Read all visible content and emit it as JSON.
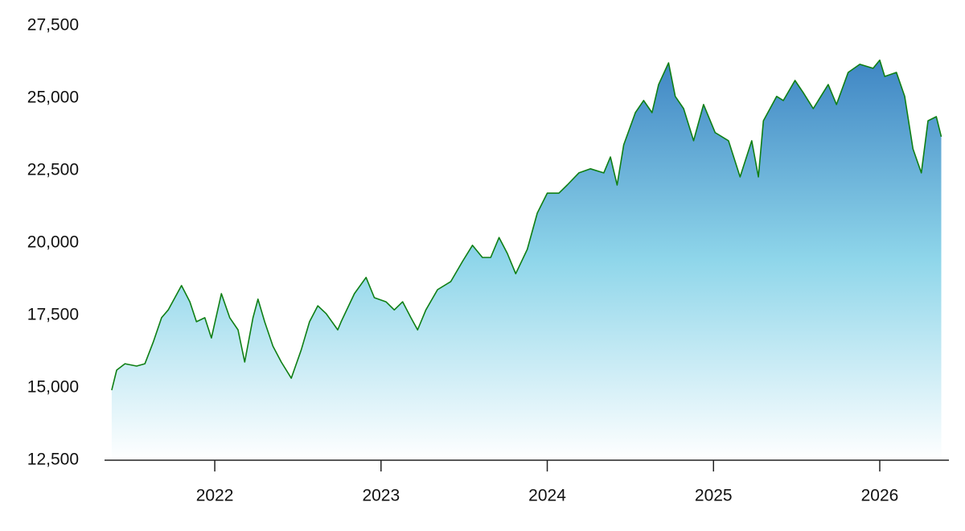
{
  "chart_data": {
    "type": "area",
    "x": [
      2021.38,
      2021.41,
      2021.46,
      2021.53,
      2021.58,
      2021.63,
      2021.68,
      2021.72,
      2021.8,
      2021.85,
      2021.89,
      2021.94,
      2021.98,
      2022.04,
      2022.09,
      2022.14,
      2022.18,
      2022.23,
      2022.26,
      2022.3,
      2022.35,
      2022.4,
      2022.46,
      2022.52,
      2022.57,
      2022.62,
      2022.67,
      2022.74,
      2022.76,
      2022.84,
      2022.91,
      2022.96,
      2023.03,
      2023.08,
      2023.13,
      2023.18,
      2023.22,
      2023.27,
      2023.34,
      2023.42,
      2023.49,
      2023.55,
      2023.61,
      2023.66,
      2023.71,
      2023.76,
      2023.81,
      2023.88,
      2023.94,
      2024.0,
      2024.07,
      2024.12,
      2024.19,
      2024.26,
      2024.34,
      2024.38,
      2024.42,
      2024.46,
      2024.53,
      2024.58,
      2024.63,
      2024.67,
      2024.73,
      2024.77,
      2024.82,
      2024.88,
      2024.94,
      2025.01,
      2025.09,
      2025.16,
      2025.23,
      2025.27,
      2025.3,
      2025.38,
      2025.42,
      2025.49,
      2025.54,
      2025.6,
      2025.69,
      2025.74,
      2025.81,
      2025.88,
      2025.96,
      2026.0,
      2026.03,
      2026.1,
      2026.15,
      2026.2,
      2026.25,
      2026.29,
      2026.34,
      2026.37
    ],
    "series": [
      {
        "color": "#0f7f14",
        "values": [
          14920,
          15610,
          15830,
          15750,
          15830,
          16580,
          17420,
          17690,
          18530,
          17970,
          17280,
          17420,
          16720,
          18250,
          17420,
          17000,
          15890,
          17420,
          18060,
          17280,
          16440,
          15890,
          15330,
          16310,
          17280,
          17830,
          17560,
          17000,
          17280,
          18250,
          18810,
          18110,
          17970,
          17690,
          17970,
          17420,
          17000,
          17690,
          18390,
          18670,
          19360,
          19920,
          19500,
          19500,
          20190,
          19640,
          18940,
          19780,
          21030,
          21720,
          21720,
          22000,
          22420,
          22560,
          22420,
          22970,
          22000,
          23390,
          24500,
          24920,
          24500,
          25470,
          26220,
          25060,
          24640,
          23530,
          24780,
          23810,
          23530,
          22280,
          23530,
          22280,
          24220,
          25060,
          24920,
          25610,
          25190,
          24640,
          25470,
          24780,
          25890,
          26170,
          26030,
          26310,
          25750,
          25890,
          25060,
          23250,
          22420,
          24220,
          24360,
          23670
        ]
      }
    ],
    "area_colors": [
      "#3f86c4",
      "#8fd6ea",
      "#ffffff"
    ],
    "xlim": [
      2021.337,
      2026.416
    ],
    "xticks": [
      2022,
      2023,
      2024,
      2025,
      2026
    ],
    "ylim": [
      12500,
      27500
    ],
    "yticks": [
      {
        "value": 12500,
        "label": "12,500"
      },
      {
        "value": 15000,
        "label": "15,000"
      },
      {
        "value": 17500,
        "label": "17,500"
      },
      {
        "value": 20000,
        "label": "20,000"
      },
      {
        "value": 22500,
        "label": "22,500"
      },
      {
        "value": 25000,
        "label": "25,000"
      },
      {
        "value": 27500,
        "label": "27,500"
      }
    ],
    "grid": false
  }
}
